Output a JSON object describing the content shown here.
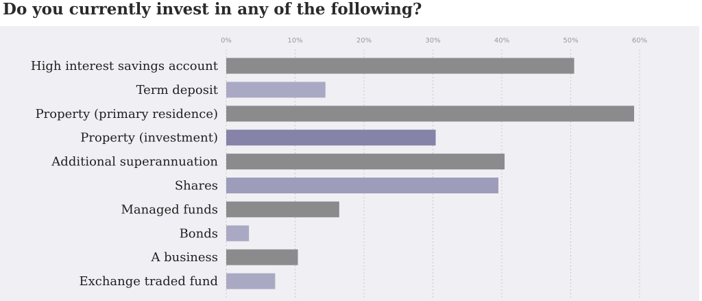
{
  "title": "Do you currently invest in any of the following?",
  "colors": {
    "panel_bg": "#f0eff4",
    "gridline": "#c8c8c8",
    "tick_text": "#9a9a9a",
    "label_text": "#1e1e1e"
  },
  "chart_data": {
    "type": "bar",
    "orientation": "horizontal",
    "title": "Do you currently invest in any of the following?",
    "xlabel": "",
    "ylabel": "",
    "xlim": [
      0,
      60
    ],
    "x_ticks": [
      0,
      10,
      20,
      30,
      40,
      50,
      60
    ],
    "x_tick_labels": [
      "0%",
      "10%",
      "20%",
      "30%",
      "40%",
      "50%",
      "60%"
    ],
    "grid": "vertical dashed",
    "legend": "none",
    "categories": [
      "High interest savings account",
      "Term deposit",
      "Property (primary residence)",
      "Property (investment)",
      "Additional superannuation",
      "Shares",
      "Managed funds",
      "Bonds",
      "A business",
      "Exchange traded fund"
    ],
    "values": [
      50.5,
      14.4,
      59.2,
      30.4,
      40.4,
      39.5,
      16.4,
      3.3,
      10.4,
      7.1
    ],
    "bar_colors": [
      "#8b8b8d",
      "#aaa9c3",
      "#8b8b8d",
      "#8583a8",
      "#8b8b8d",
      "#9d9cbb",
      "#8b8b8d",
      "#aaa9c3",
      "#8b8b8d",
      "#aaa9c3"
    ]
  }
}
